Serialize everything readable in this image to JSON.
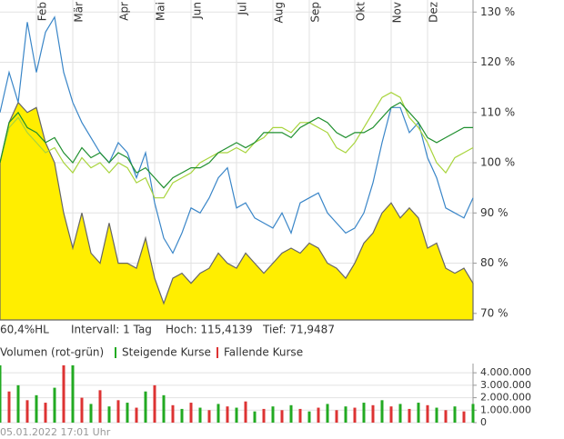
{
  "chart_data": [
    {
      "type": "line",
      "categories": [
        null,
        null,
        null,
        null,
        "Feb",
        null,
        null,
        null,
        "Mär",
        null,
        null,
        null,
        null,
        "Apr",
        null,
        null,
        null,
        "Mai",
        null,
        null,
        null,
        "Jun",
        null,
        null,
        null,
        null,
        "Jul",
        null,
        null,
        null,
        "Aug",
        null,
        null,
        null,
        "Sep",
        null,
        null,
        null,
        null,
        "Okt",
        null,
        null,
        null,
        "Nov",
        null,
        null,
        null,
        "Dez",
        null,
        null,
        null,
        null,
        null
      ],
      "series": [
        {
          "color": "#666666",
          "area": true,
          "fill": "#ffee00",
          "values": [
            100,
            108,
            112,
            110,
            111,
            104,
            100,
            90,
            83,
            90,
            82,
            80,
            88,
            80,
            80,
            79,
            85,
            77,
            72,
            77,
            78,
            76,
            78,
            79,
            82,
            80,
            79,
            82,
            80,
            78,
            80,
            82,
            83,
            82,
            84,
            83,
            80,
            79,
            77,
            80,
            84,
            86,
            90,
            92,
            89,
            91,
            89,
            83,
            84,
            79,
            78,
            79,
            76
          ]
        },
        {
          "color": "#3a86c8",
          "values": [
            110,
            118,
            112,
            128,
            118,
            126,
            129,
            118,
            112,
            108,
            105,
            102,
            100,
            104,
            102,
            97,
            102,
            92,
            85,
            82,
            86,
            91,
            90,
            93,
            97,
            99,
            91,
            92,
            89,
            88,
            87,
            90,
            86,
            92,
            93,
            94,
            90,
            88,
            86,
            87,
            90,
            96,
            104,
            111,
            111,
            106,
            108,
            101,
            97,
            91,
            90,
            89,
            93
          ]
        },
        {
          "color": "#a8d43c",
          "values": [
            100,
            107,
            109,
            106,
            104,
            102,
            103,
            100,
            98,
            101,
            99,
            100,
            98,
            100,
            99,
            96,
            97,
            93,
            93,
            96,
            97,
            98,
            100,
            101,
            102,
            102,
            103,
            102,
            104,
            105,
            107,
            107,
            106,
            108,
            108,
            107,
            106,
            103,
            102,
            104,
            107,
            110,
            113,
            114,
            113,
            109,
            107,
            104,
            100,
            98,
            101,
            102,
            103
          ]
        },
        {
          "color": "#1f8f2e",
          "values": [
            100,
            108,
            110,
            107,
            106,
            104,
            105,
            102,
            100,
            103,
            101,
            102,
            100,
            102,
            101,
            98,
            99,
            97,
            95,
            97,
            98,
            99,
            99,
            100,
            102,
            103,
            104,
            103,
            104,
            106,
            106,
            106,
            105,
            107,
            108,
            109,
            108,
            106,
            105,
            106,
            106,
            107,
            109,
            111,
            112,
            110,
            108,
            105,
            104,
            105,
            106,
            107,
            107
          ]
        }
      ],
      "ylim": [
        68.7,
        132.4
      ],
      "yticks": [
        {
          "value": 70,
          "label": "70 %"
        },
        {
          "value": 80,
          "label": "80 %"
        },
        {
          "value": 90,
          "label": "90 %"
        },
        {
          "value": 100,
          "label": "100 %"
        },
        {
          "value": 110,
          "label": "110 %"
        },
        {
          "value": 120,
          "label": "120 %"
        },
        {
          "value": 130,
          "label": "130 %"
        }
      ],
      "grid": true
    },
    {
      "type": "bar",
      "title": "Volumen (rot-grün)",
      "categories": [
        null,
        null,
        null,
        null,
        null,
        null,
        null,
        null,
        null,
        null,
        null,
        null,
        null,
        null,
        null,
        null,
        null,
        null,
        null,
        null,
        null,
        null,
        null,
        null,
        null,
        null,
        null,
        null,
        null,
        null,
        null,
        null,
        null,
        null,
        null,
        null,
        null,
        null,
        null,
        null,
        null,
        null,
        null,
        null,
        null,
        null,
        null,
        null,
        null,
        null,
        null,
        null,
        null
      ],
      "series": [
        {
          "name": "Steigende Kurse",
          "color": "#22aa22",
          "values": [
            4600000,
            null,
            3000000,
            null,
            2200000,
            null,
            2800000,
            null,
            4600000,
            null,
            1500000,
            null,
            1300000,
            null,
            1600000,
            null,
            2500000,
            null,
            2200000,
            null,
            1100000,
            null,
            1200000,
            null,
            1500000,
            null,
            1200000,
            null,
            900000,
            null,
            1300000,
            null,
            1400000,
            null,
            900000,
            null,
            1500000,
            null,
            1300000,
            null,
            1600000,
            null,
            1800000,
            null,
            1500000,
            null,
            1600000,
            null,
            1200000,
            null,
            1300000,
            null,
            1500000
          ]
        },
        {
          "name": "Fallende Kurse",
          "color": "#dd3333",
          "values": [
            null,
            2500000,
            null,
            1800000,
            null,
            1600000,
            null,
            4600000,
            null,
            2000000,
            null,
            2600000,
            null,
            1800000,
            null,
            1200000,
            null,
            3000000,
            null,
            1400000,
            null,
            1600000,
            null,
            1000000,
            null,
            1300000,
            null,
            1700000,
            null,
            1100000,
            null,
            1000000,
            null,
            1100000,
            null,
            1200000,
            null,
            1000000,
            null,
            1200000,
            null,
            1400000,
            null,
            1300000,
            null,
            1100000,
            null,
            1400000,
            null,
            1000000,
            null,
            900000,
            null
          ]
        }
      ],
      "ylim": [
        0,
        4740000
      ],
      "yticks": [
        0,
        {
          "value": 1000000,
          "label": "1.000.000"
        },
        {
          "value": 2000000,
          "label": "2.000.000"
        },
        {
          "value": 3000000,
          "label": "3.000.000"
        },
        {
          "value": 4000000,
          "label": "4.000.000"
        }
      ],
      "grid": true
    }
  ],
  "info": {
    "range": "60,4%HL",
    "interval": "Intervall: 1 Tag",
    "high": "Hoch: 115,4139",
    "low": "Tief: 71,9487",
    "timestamp": "05.01.2022 17:01 Uhr"
  }
}
